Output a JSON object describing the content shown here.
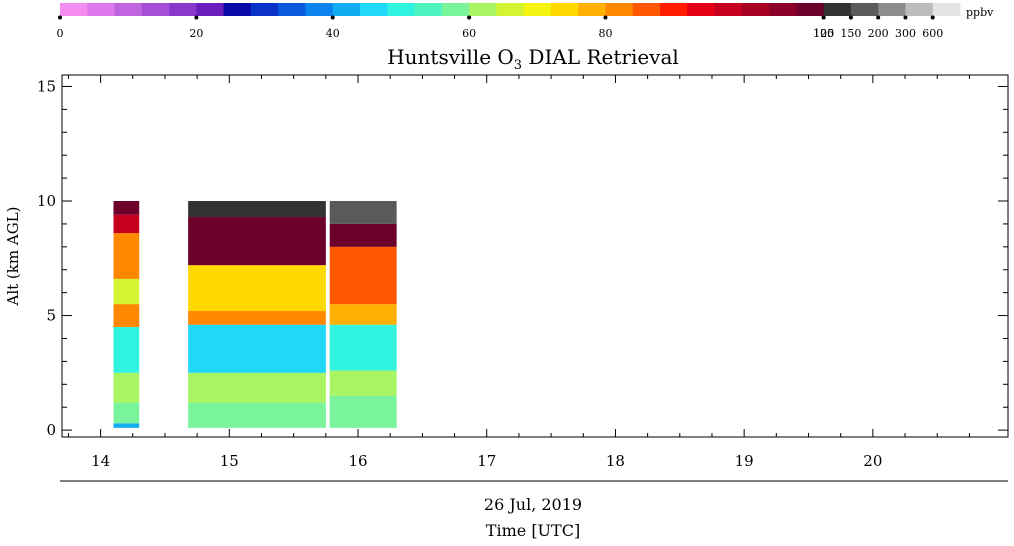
{
  "chart_data": {
    "type": "heatmap",
    "title": "Huntsville O3 DIAL Retrieval",
    "title_main": "Huntsville O",
    "title_sub": "3",
    "title_rest": " DIAL Retrieval",
    "xlabel": "Time [UTC]",
    "ylabel": "Alt (km AGL)",
    "date_label": "26 Jul, 2019",
    "xlim": [
      13.7,
      21.05
    ],
    "ylim": [
      -0.3,
      15.5
    ],
    "x_ticks": [
      "14",
      "15",
      "16",
      "17",
      "18",
      "19",
      "20"
    ],
    "x_tick_values": [
      14,
      15,
      16,
      17,
      18,
      19,
      20
    ],
    "y_ticks": [
      "0",
      "5",
      "10",
      "15"
    ],
    "y_tick_values": [
      0,
      5,
      10,
      15
    ],
    "colorbar": {
      "unit": "ppbv",
      "tick_labels": [
        "0",
        "20",
        "40",
        "60",
        "80",
        "100",
        "125",
        "150",
        "200",
        "300",
        "600"
      ],
      "tick_value_positions": [
        0,
        20,
        40,
        60,
        80,
        100,
        125,
        150,
        200,
        300,
        600
      ],
      "colors": [
        "#f58cf0",
        "#dd79ec",
        "#c064e0",
        "#a650d8",
        "#8a38cc",
        "#6a1ebc",
        "#0a0aa8",
        "#0a32c8",
        "#0a5ade",
        "#0a84ec",
        "#12acf2",
        "#20d8f8",
        "#30f4e0",
        "#50f4c0",
        "#7af49a",
        "#a8f462",
        "#d2f432",
        "#f4f410",
        "#ffd800",
        "#ffb000",
        "#ff8800",
        "#ff5800",
        "#ff1c00",
        "#e60016",
        "#c80020",
        "#a80022",
        "#8a0028",
        "#6c002a",
        "#333333",
        "#5a5a5a",
        "#8c8c8c",
        "#bcbcbc",
        "#e4e4e4"
      ]
    },
    "profile_intervals": [
      {
        "start": 14.1,
        "end": 14.3
      },
      {
        "start": 14.68,
        "end": 15.75
      },
      {
        "start": 15.78,
        "end": 16.3
      }
    ],
    "representative_profiles": [
      {
        "time": 14.2,
        "layers": [
          {
            "bottom": 0.1,
            "top": 0.3,
            "ppbv": 42
          },
          {
            "bottom": 0.3,
            "top": 1.2,
            "ppbv": 58
          },
          {
            "bottom": 1.2,
            "top": 2.5,
            "ppbv": 62
          },
          {
            "bottom": 2.5,
            "top": 4.5,
            "ppbv": 48
          },
          {
            "bottom": 4.5,
            "top": 5.5,
            "ppbv": 80
          },
          {
            "bottom": 5.5,
            "top": 6.6,
            "ppbv": 66
          },
          {
            "bottom": 6.6,
            "top": 8.6,
            "ppbv": 82
          },
          {
            "bottom": 8.6,
            "top": 9.4,
            "ppbv": 96
          },
          {
            "bottom": 9.4,
            "top": 10.0,
            "ppbv": 110
          }
        ]
      },
      {
        "time": 15.2,
        "layers": [
          {
            "bottom": 0.1,
            "top": 1.2,
            "ppbv": 58
          },
          {
            "bottom": 1.2,
            "top": 2.5,
            "ppbv": 62
          },
          {
            "bottom": 2.5,
            "top": 4.6,
            "ppbv": 45
          },
          {
            "bottom": 4.6,
            "top": 5.2,
            "ppbv": 80
          },
          {
            "bottom": 5.2,
            "top": 7.2,
            "ppbv": 72
          },
          {
            "bottom": 7.2,
            "top": 9.3,
            "ppbv": 110
          },
          {
            "bottom": 9.3,
            "top": 10.0,
            "ppbv": 140
          }
        ]
      },
      {
        "time": 16.1,
        "layers": [
          {
            "bottom": 0.1,
            "top": 1.5,
            "ppbv": 58
          },
          {
            "bottom": 1.5,
            "top": 2.6,
            "ppbv": 62
          },
          {
            "bottom": 2.6,
            "top": 4.6,
            "ppbv": 50
          },
          {
            "bottom": 4.6,
            "top": 5.5,
            "ppbv": 78
          },
          {
            "bottom": 5.5,
            "top": 8.0,
            "ppbv": 84
          },
          {
            "bottom": 8.0,
            "top": 9.0,
            "ppbv": 110
          },
          {
            "bottom": 9.0,
            "top": 10.0,
            "ppbv": 170
          }
        ]
      }
    ]
  }
}
